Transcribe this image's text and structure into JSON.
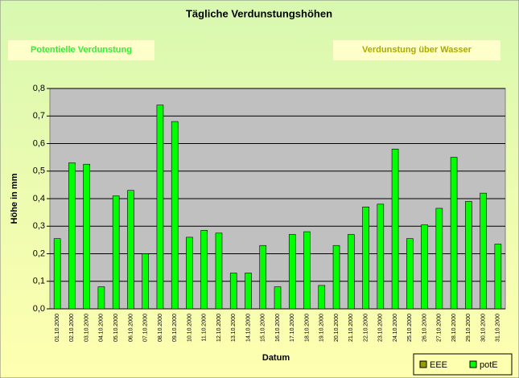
{
  "chart_data": {
    "type": "bar",
    "title": "Tägliche Verdunstungshöhen",
    "buttons": [
      "Potentielle Verdunstung",
      "Verdunstung über Wasser"
    ],
    "xlabel": "Datum",
    "ylabel": "Höhe in mm",
    "categories": [
      "01.10.2000",
      "02.10.2000",
      "03.10.2000",
      "04.10.2000",
      "05.10.2000",
      "06.10.2000",
      "07.10.2000",
      "08.10.2000",
      "09.10.2000",
      "10.10.2000",
      "11.10.2000",
      "12.10.2000",
      "13.10.2000",
      "14.10.2000",
      "15.10.2000",
      "16.10.2000",
      "17.10.2000",
      "18.10.2000",
      "19.10.2000",
      "20.10.2000",
      "21.10.2000",
      "22.10.2000",
      "23.10.2000",
      "24.10.2000",
      "25.10.2000",
      "26.10.2000",
      "27.10.2000",
      "28.10.2000",
      "29.10.2000",
      "30.10.2000",
      "31.10.2000"
    ],
    "series": [
      {
        "name": "EEE",
        "color": "#999900",
        "values": [
          null,
          null,
          null,
          null,
          null,
          null,
          null,
          null,
          null,
          null,
          null,
          null,
          null,
          null,
          null,
          null,
          null,
          null,
          null,
          null,
          null,
          null,
          null,
          null,
          null,
          null,
          null,
          null,
          null,
          null,
          null
        ]
      },
      {
        "name": "potE",
        "color": "#00ff00",
        "values": [
          0.255,
          0.53,
          0.525,
          0.08,
          0.41,
          0.43,
          0.2,
          0.74,
          0.68,
          0.26,
          0.285,
          0.275,
          0.13,
          0.13,
          0.23,
          0.08,
          0.27,
          0.28,
          0.085,
          0.23,
          0.27,
          0.37,
          0.38,
          0.58,
          0.255,
          0.305,
          0.365,
          0.55,
          0.39,
          0.42,
          0.235
        ]
      }
    ],
    "ylim": [
      0,
      0.8
    ],
    "yticks": [
      {
        "value": 0,
        "label": "0,0"
      },
      {
        "value": 0.1,
        "label": "0,1"
      },
      {
        "value": 0.2,
        "label": "0,2"
      },
      {
        "value": 0.3,
        "label": "0,3"
      },
      {
        "value": 0.4,
        "label": "0,4"
      },
      {
        "value": 0.5,
        "label": "0,5"
      },
      {
        "value": 0.6,
        "label": "0,6"
      },
      {
        "value": 0.7,
        "label": "0,7"
      },
      {
        "value": 0.8,
        "label": "0,8"
      }
    ],
    "grid": true,
    "legend": "bottom-right"
  }
}
